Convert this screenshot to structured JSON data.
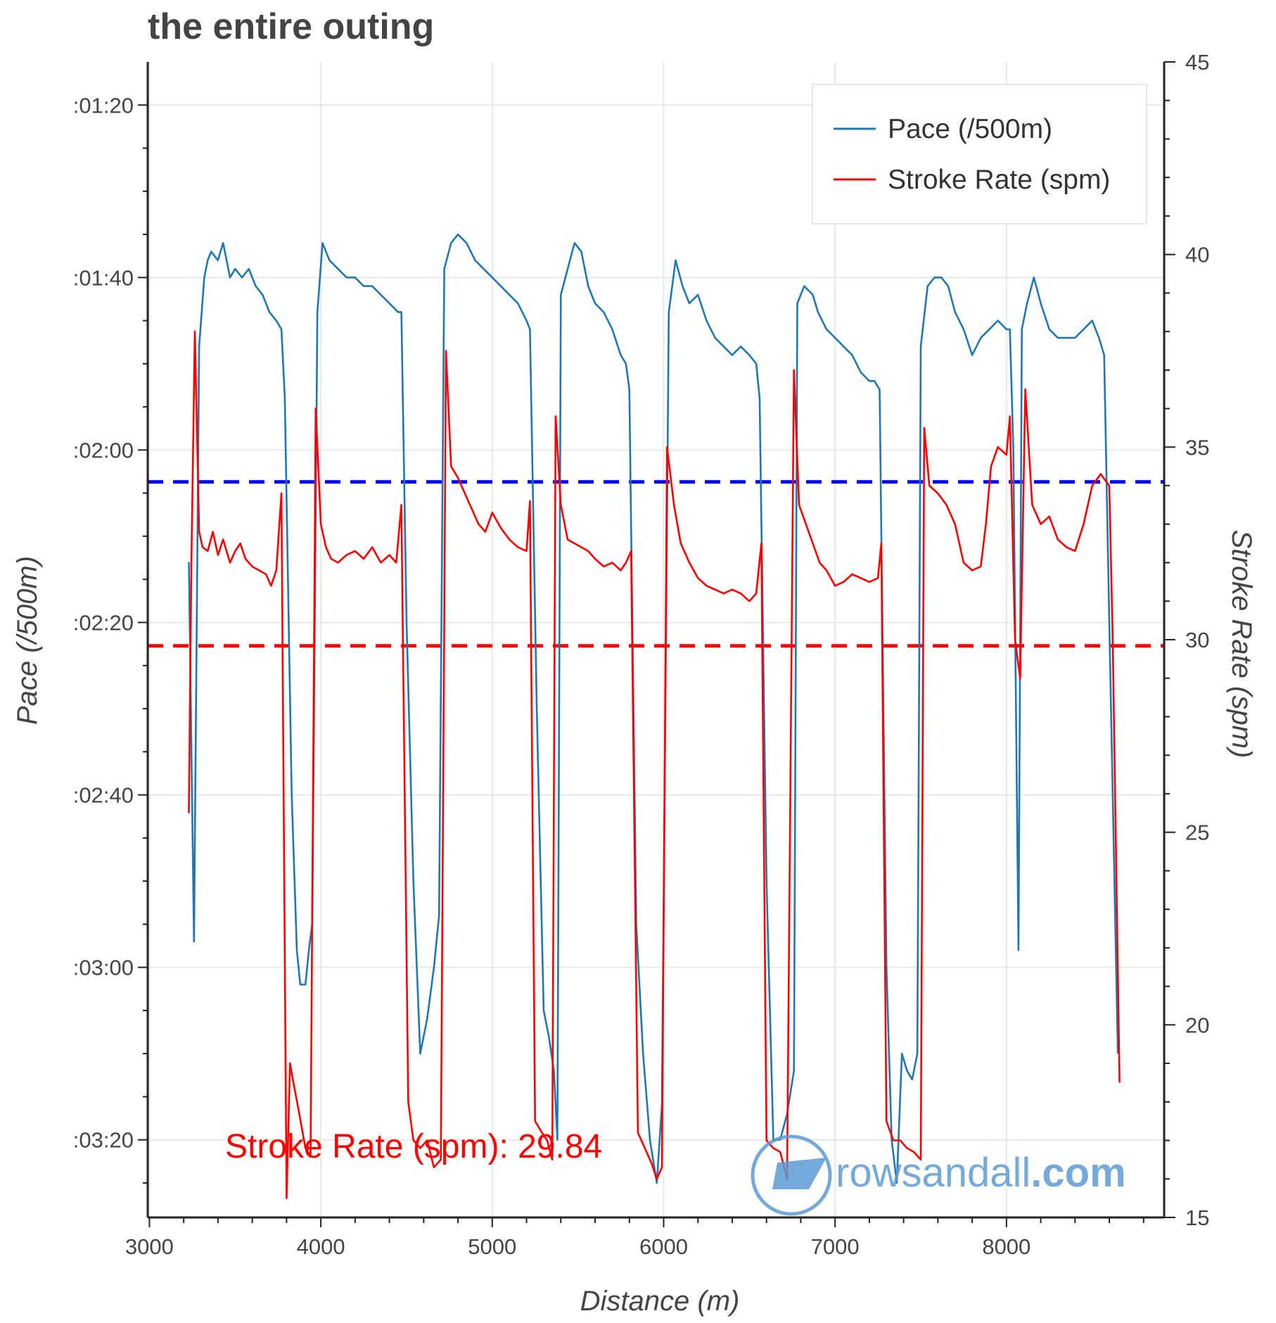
{
  "chart_data": {
    "type": "line",
    "title": "the entire outing",
    "xlabel": "Distance (m)",
    "ylabel_left": "Pace (/500m)",
    "ylabel_right": "Stroke Rate (spm)",
    "xlim": [
      2990,
      8920
    ],
    "x_ticks": [
      3000,
      4000,
      5000,
      6000,
      7000,
      8000
    ],
    "left_axis": {
      "unit": "seconds per 500m",
      "inverted": true,
      "ylim": [
        75,
        209
      ],
      "tick_values": [
        80,
        100,
        120,
        140,
        160,
        180,
        200
      ],
      "tick_labels": [
        ":01:20",
        ":01:40",
        ":02:00",
        ":02:20",
        ":02:40",
        ":03:00",
        ":03:20"
      ]
    },
    "right_axis": {
      "ylim": [
        15,
        45
      ],
      "tick_values": [
        15,
        20,
        25,
        30,
        35,
        40,
        45
      ],
      "tick_labels": [
        "15",
        "20",
        "25",
        "30",
        "35",
        "40",
        "45"
      ]
    },
    "grid": true,
    "legend": {
      "placement": "top-right",
      "entries": [
        {
          "label": "Pace (/500m)",
          "color": "#1f77b4"
        },
        {
          "label": "Stroke Rate (spm)",
          "color": "#ff0000"
        }
      ]
    },
    "reference_lines": [
      {
        "axis": "left",
        "value": 123.7,
        "color": "#0000ff",
        "style": "dashed"
      },
      {
        "axis": "right",
        "value": 29.84,
        "color": "#ff0000",
        "style": "dashed"
      }
    ],
    "annotation": {
      "text": "Stroke Rate (spm): 29.84",
      "color": "#ff0000"
    },
    "watermark": {
      "text_main": "rowsandall",
      "text_suffix": ".com",
      "color": "#5b9bd5"
    },
    "series": [
      {
        "name": "Pace (/500m)",
        "axis": "left",
        "color": "#1f77b4",
        "points": [
          [
            3230,
            133
          ],
          [
            3260,
            177
          ],
          [
            3290,
            108
          ],
          [
            3320,
            100
          ],
          [
            3340,
            98
          ],
          [
            3360,
            97
          ],
          [
            3400,
            98
          ],
          [
            3430,
            96
          ],
          [
            3470,
            100
          ],
          [
            3500,
            99
          ],
          [
            3540,
            100
          ],
          [
            3580,
            99
          ],
          [
            3620,
            101
          ],
          [
            3660,
            102
          ],
          [
            3700,
            104
          ],
          [
            3740,
            105
          ],
          [
            3770,
            106
          ],
          [
            3790,
            114
          ],
          [
            3830,
            160
          ],
          [
            3860,
            178
          ],
          [
            3880,
            182
          ],
          [
            3910,
            182
          ],
          [
            3930,
            178
          ],
          [
            3950,
            175
          ],
          [
            3980,
            104
          ],
          [
            4010,
            96
          ],
          [
            4050,
            98
          ],
          [
            4100,
            99
          ],
          [
            4150,
            100
          ],
          [
            4200,
            100
          ],
          [
            4250,
            101
          ],
          [
            4300,
            101
          ],
          [
            4350,
            102
          ],
          [
            4400,
            103
          ],
          [
            4450,
            104
          ],
          [
            4470,
            104
          ],
          [
            4500,
            140
          ],
          [
            4540,
            170
          ],
          [
            4580,
            190
          ],
          [
            4620,
            186
          ],
          [
            4660,
            180
          ],
          [
            4690,
            174
          ],
          [
            4720,
            99
          ],
          [
            4760,
            96
          ],
          [
            4800,
            95
          ],
          [
            4850,
            96
          ],
          [
            4900,
            98
          ],
          [
            4950,
            99
          ],
          [
            5000,
            100
          ],
          [
            5050,
            101
          ],
          [
            5100,
            102
          ],
          [
            5150,
            103
          ],
          [
            5200,
            105
          ],
          [
            5220,
            106
          ],
          [
            5260,
            150
          ],
          [
            5300,
            185
          ],
          [
            5330,
            188
          ],
          [
            5360,
            192
          ],
          [
            5380,
            200
          ],
          [
            5400,
            102
          ],
          [
            5440,
            99
          ],
          [
            5480,
            96
          ],
          [
            5520,
            97
          ],
          [
            5560,
            101
          ],
          [
            5600,
            103
          ],
          [
            5650,
            104
          ],
          [
            5700,
            106
          ],
          [
            5750,
            109
          ],
          [
            5780,
            110
          ],
          [
            5800,
            113
          ],
          [
            5840,
            175
          ],
          [
            5880,
            190
          ],
          [
            5920,
            200
          ],
          [
            5960,
            205
          ],
          [
            5990,
            196
          ],
          [
            6030,
            104
          ],
          [
            6070,
            98
          ],
          [
            6110,
            101
          ],
          [
            6150,
            103
          ],
          [
            6200,
            102
          ],
          [
            6250,
            105
          ],
          [
            6300,
            107
          ],
          [
            6350,
            108
          ],
          [
            6400,
            109
          ],
          [
            6450,
            108
          ],
          [
            6500,
            109
          ],
          [
            6540,
            110
          ],
          [
            6560,
            114
          ],
          [
            6600,
            170
          ],
          [
            6640,
            200
          ],
          [
            6680,
            200
          ],
          [
            6720,
            197
          ],
          [
            6760,
            192
          ],
          [
            6780,
            103
          ],
          [
            6820,
            101
          ],
          [
            6870,
            102
          ],
          [
            6900,
            104
          ],
          [
            6950,
            106
          ],
          [
            7000,
            107
          ],
          [
            7050,
            108
          ],
          [
            7100,
            109
          ],
          [
            7150,
            111
          ],
          [
            7200,
            112
          ],
          [
            7230,
            112
          ],
          [
            7260,
            113
          ],
          [
            7300,
            180
          ],
          [
            7330,
            200
          ],
          [
            7360,
            205
          ],
          [
            7390,
            190
          ],
          [
            7420,
            192
          ],
          [
            7450,
            193
          ],
          [
            7480,
            190
          ],
          [
            7500,
            108
          ],
          [
            7540,
            101
          ],
          [
            7580,
            100
          ],
          [
            7620,
            100
          ],
          [
            7660,
            101
          ],
          [
            7700,
            104
          ],
          [
            7750,
            106
          ],
          [
            7800,
            109
          ],
          [
            7850,
            107
          ],
          [
            7900,
            106
          ],
          [
            7950,
            105
          ],
          [
            8000,
            106
          ],
          [
            8020,
            106
          ],
          [
            8040,
            120
          ],
          [
            8070,
            178
          ],
          [
            8090,
            106
          ],
          [
            8120,
            103
          ],
          [
            8160,
            100
          ],
          [
            8200,
            103
          ],
          [
            8250,
            106
          ],
          [
            8300,
            107
          ],
          [
            8350,
            107
          ],
          [
            8400,
            107
          ],
          [
            8450,
            106
          ],
          [
            8500,
            105
          ],
          [
            8540,
            107
          ],
          [
            8570,
            109
          ],
          [
            8600,
            140
          ],
          [
            8650,
            190
          ]
        ]
      },
      {
        "name": "Stroke Rate (spm)",
        "axis": "right",
        "color": "#ff0000",
        "points": [
          [
            3230,
            25.5
          ],
          [
            3245,
            32
          ],
          [
            3265,
            38
          ],
          [
            3290,
            32.8
          ],
          [
            3310,
            32.4
          ],
          [
            3340,
            32.3
          ],
          [
            3370,
            32.8
          ],
          [
            3400,
            32.2
          ],
          [
            3430,
            32.6
          ],
          [
            3470,
            32.0
          ],
          [
            3500,
            32.3
          ],
          [
            3530,
            32.5
          ],
          [
            3560,
            32.1
          ],
          [
            3600,
            31.9
          ],
          [
            3640,
            31.8
          ],
          [
            3680,
            31.7
          ],
          [
            3710,
            31.4
          ],
          [
            3740,
            31.8
          ],
          [
            3770,
            33.8
          ],
          [
            3800,
            15.5
          ],
          [
            3820,
            19
          ],
          [
            3840,
            18.5
          ],
          [
            3870,
            17.8
          ],
          [
            3910,
            16.8
          ],
          [
            3940,
            16.6
          ],
          [
            3970,
            36
          ],
          [
            4000,
            33.0
          ],
          [
            4030,
            32.4
          ],
          [
            4060,
            32.1
          ],
          [
            4100,
            32.0
          ],
          [
            4150,
            32.2
          ],
          [
            4200,
            32.3
          ],
          [
            4250,
            32.1
          ],
          [
            4300,
            32.4
          ],
          [
            4350,
            32.0
          ],
          [
            4400,
            32.2
          ],
          [
            4440,
            32.0
          ],
          [
            4470,
            33.5
          ],
          [
            4510,
            18
          ],
          [
            4540,
            17
          ],
          [
            4580,
            16.8
          ],
          [
            4620,
            17.0
          ],
          [
            4660,
            16.3
          ],
          [
            4700,
            16.5
          ],
          [
            4730,
            37.5
          ],
          [
            4760,
            34.5
          ],
          [
            4800,
            34.2
          ],
          [
            4840,
            33.8
          ],
          [
            4880,
            33.4
          ],
          [
            4920,
            33.0
          ],
          [
            4960,
            32.8
          ],
          [
            5000,
            33.3
          ],
          [
            5050,
            32.9
          ],
          [
            5100,
            32.6
          ],
          [
            5150,
            32.4
          ],
          [
            5200,
            32.3
          ],
          [
            5220,
            33.6
          ],
          [
            5250,
            17.5
          ],
          [
            5290,
            17.2
          ],
          [
            5320,
            17.0
          ],
          [
            5350,
            16.5
          ],
          [
            5370,
            35.8
          ],
          [
            5400,
            33.5
          ],
          [
            5440,
            32.6
          ],
          [
            5480,
            32.5
          ],
          [
            5520,
            32.4
          ],
          [
            5560,
            32.3
          ],
          [
            5600,
            32.1
          ],
          [
            5650,
            31.9
          ],
          [
            5700,
            32.0
          ],
          [
            5750,
            31.8
          ],
          [
            5780,
            32.0
          ],
          [
            5810,
            32.3
          ],
          [
            5850,
            17.2
          ],
          [
            5890,
            16.8
          ],
          [
            5930,
            16.4
          ],
          [
            5960,
            16.0
          ],
          [
            5990,
            16.3
          ],
          [
            6020,
            35
          ],
          [
            6060,
            33.5
          ],
          [
            6100,
            32.5
          ],
          [
            6150,
            32.0
          ],
          [
            6200,
            31.6
          ],
          [
            6250,
            31.4
          ],
          [
            6300,
            31.3
          ],
          [
            6350,
            31.2
          ],
          [
            6400,
            31.3
          ],
          [
            6450,
            31.2
          ],
          [
            6500,
            31.0
          ],
          [
            6540,
            31.2
          ],
          [
            6570,
            32.5
          ],
          [
            6600,
            17
          ],
          [
            6640,
            16.8
          ],
          [
            6680,
            16.7
          ],
          [
            6720,
            16.0
          ],
          [
            6760,
            37
          ],
          [
            6790,
            33.5
          ],
          [
            6830,
            33.0
          ],
          [
            6870,
            32.5
          ],
          [
            6910,
            32.0
          ],
          [
            6950,
            31.8
          ],
          [
            7000,
            31.4
          ],
          [
            7050,
            31.5
          ],
          [
            7100,
            31.7
          ],
          [
            7150,
            31.6
          ],
          [
            7200,
            31.5
          ],
          [
            7250,
            31.6
          ],
          [
            7270,
            32.5
          ],
          [
            7300,
            17.5
          ],
          [
            7340,
            17.0
          ],
          [
            7380,
            17.0
          ],
          [
            7420,
            16.8
          ],
          [
            7460,
            16.7
          ],
          [
            7500,
            16.5
          ],
          [
            7520,
            35.5
          ],
          [
            7550,
            34.0
          ],
          [
            7600,
            33.8
          ],
          [
            7650,
            33.5
          ],
          [
            7700,
            33.0
          ],
          [
            7750,
            32.0
          ],
          [
            7800,
            31.8
          ],
          [
            7850,
            31.9
          ],
          [
            7880,
            33.0
          ],
          [
            7910,
            34.5
          ],
          [
            7950,
            35
          ],
          [
            8000,
            34.8
          ],
          [
            8020,
            35.8
          ],
          [
            8050,
            30.0
          ],
          [
            8080,
            29.0
          ],
          [
            8110,
            36.5
          ],
          [
            8150,
            33.5
          ],
          [
            8200,
            33.0
          ],
          [
            8250,
            33.2
          ],
          [
            8300,
            32.6
          ],
          [
            8350,
            32.4
          ],
          [
            8400,
            32.3
          ],
          [
            8450,
            33.0
          ],
          [
            8500,
            34.0
          ],
          [
            8550,
            34.3
          ],
          [
            8600,
            34.0
          ],
          [
            8620,
            30
          ],
          [
            8660,
            18.5
          ]
        ]
      }
    ]
  }
}
